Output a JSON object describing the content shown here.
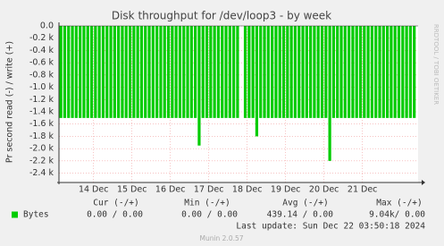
{
  "chart_data": {
    "type": "spikes",
    "title": "Disk throughput for /dev/loop3 - by week",
    "y_label": "Pr second read (-) / write (+)",
    "side_label": "RRDTOOL / TOBI OETIKER",
    "x": [
      13.15,
      13.25,
      13.35,
      13.45,
      13.55,
      13.65,
      13.75,
      13.85,
      13.95,
      14.05,
      14.15,
      14.25,
      14.35,
      14.45,
      14.55,
      14.65,
      14.75,
      14.85,
      14.95,
      15.05,
      15.15,
      15.25,
      15.35,
      15.45,
      15.55,
      15.65,
      15.75,
      15.85,
      15.95,
      16.05,
      16.15,
      16.25,
      16.35,
      16.45,
      16.55,
      16.65,
      16.75,
      16.85,
      16.95,
      17.05,
      17.15,
      17.25,
      17.35,
      17.45,
      17.55,
      17.65,
      17.75,
      17.85,
      17.95,
      18.05,
      18.15,
      18.25,
      18.35,
      18.45,
      18.55,
      18.65,
      18.75,
      18.85,
      18.95,
      19.05,
      19.15,
      19.25,
      19.35,
      19.45,
      19.55,
      19.65,
      19.75,
      19.85,
      19.95,
      20.05,
      20.15,
      20.25,
      20.35,
      20.45,
      20.55,
      20.65,
      20.75,
      20.85,
      20.95,
      21.05,
      21.15,
      21.25,
      21.35,
      21.45,
      21.55,
      21.65,
      21.75,
      21.85,
      21.95,
      22.05,
      22.15,
      22.25,
      22.35
    ],
    "series": [
      {
        "name": "Bytes",
        "color": "#00cc00",
        "values": [
          -1500,
          -1500,
          -1500,
          -1500,
          -1500,
          -1500,
          -1500,
          -1500,
          -1500,
          -1500,
          -1500,
          -1500,
          -1500,
          -1500,
          -1500,
          -1500,
          -1500,
          -1500,
          -1500,
          -1500,
          -1500,
          -1500,
          -1500,
          -1500,
          -1500,
          -1500,
          -1500,
          -1500,
          -1500,
          -1500,
          -1500,
          -1500,
          -1500,
          -1500,
          -1500,
          -1500,
          -1950,
          -1500,
          -1500,
          -1500,
          -1500,
          -1500,
          -1500,
          -1500,
          -1500,
          -1500,
          -1500,
          null,
          -1500,
          -1500,
          -1500,
          -1800,
          -1500,
          -1500,
          -1500,
          -1500,
          -1500,
          -1500,
          -1500,
          -1500,
          -1500,
          -1500,
          -1500,
          -1500,
          -1500,
          -1500,
          -1500,
          -1500,
          -1500,
          -1500,
          -2200,
          -1500,
          -1500,
          -1500,
          -1500,
          -1500,
          -1500,
          -1500,
          -1500,
          -1500,
          -1500,
          -1500,
          -1500,
          -1500,
          -1500,
          -1500,
          -1500,
          -1500,
          -1500,
          -1500,
          -1500,
          -1500,
          -1500
        ],
        "cur": "0.00 /  0.00",
        "min": "0.00 /  0.00",
        "avg": "439.14 /  0.00",
        "max": "9.04k/  0.00"
      }
    ],
    "legend_headers": [
      "Cur (-/+)",
      "Min (-/+)",
      "Avg (-/+)",
      "Max (-/+)"
    ],
    "xlim": [
      13.1,
      22.45
    ],
    "xticks": [
      {
        "value": 14,
        "label": "14 Dec"
      },
      {
        "value": 15,
        "label": "15 Dec"
      },
      {
        "value": 16,
        "label": "16 Dec"
      },
      {
        "value": 17,
        "label": "17 Dec"
      },
      {
        "value": 18,
        "label": "18 Dec"
      },
      {
        "value": 19,
        "label": "19 Dec"
      },
      {
        "value": 20,
        "label": "20 Dec"
      },
      {
        "value": 21,
        "label": "21 Dec"
      }
    ],
    "ylim": [
      -2450,
      0
    ],
    "yticks": [
      {
        "value": 0,
        "label": "0.0"
      },
      {
        "value": -200,
        "label": "-0.2 k"
      },
      {
        "value": -400,
        "label": "-0.4 k"
      },
      {
        "value": -600,
        "label": "-0.6 k"
      },
      {
        "value": -800,
        "label": "-0.8 k"
      },
      {
        "value": -1000,
        "label": "-1.0 k"
      },
      {
        "value": -1200,
        "label": "-1.2 k"
      },
      {
        "value": -1400,
        "label": "-1.4 k"
      },
      {
        "value": -1600,
        "label": "-1.6 k"
      },
      {
        "value": -1800,
        "label": "-1.8 k"
      },
      {
        "value": -2000,
        "label": "-2.0 k"
      },
      {
        "value": -2200,
        "label": "-2.2 k"
      },
      {
        "value": -2400,
        "label": "-2.4 k"
      }
    ],
    "grid": true,
    "last_update": "Last update: Sun Dec 22 03:50:18 2024",
    "footer": "Munin 2.0.57"
  }
}
